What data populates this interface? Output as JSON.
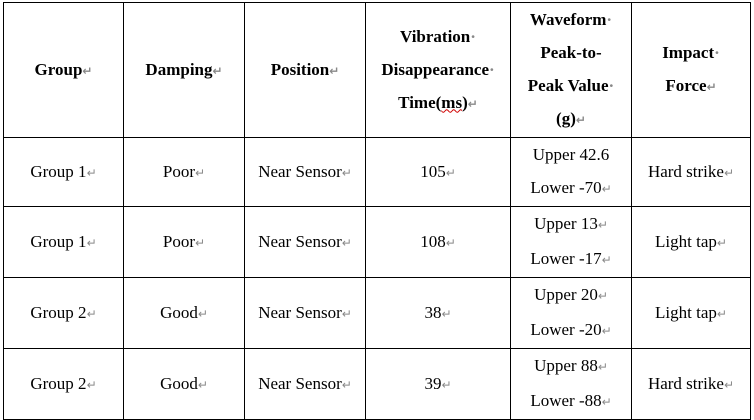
{
  "table": {
    "headers": {
      "group": "Group",
      "damping": "Damping",
      "position": "Position",
      "vibration_line1": "Vibration",
      "vibration_line2": "Disappearance",
      "vibration_line3_pre": "Time(",
      "vibration_line3_ms": "ms",
      "vibration_line3_post": ")",
      "waveform_line1": "Waveform",
      "waveform_line2": "Peak-to-",
      "waveform_line3": "Peak Value",
      "waveform_line4": "(g)",
      "impact_line1": "Impact",
      "impact_line2": "Force"
    },
    "rows": [
      {
        "group": "Group 1",
        "damping": "Poor",
        "position": "Near Sensor",
        "time": "105",
        "upper": "Upper 42.6",
        "lower": "Lower -70",
        "force": "Hard strike"
      },
      {
        "group": "Group 1",
        "damping": "Poor",
        "position": "Near Sensor",
        "time": "108",
        "upper": "Upper 13",
        "lower": "Lower -17",
        "force": "Light tap"
      },
      {
        "group": "Group 2",
        "damping": "Good",
        "position": "Near Sensor",
        "time": "38",
        "upper": "Upper 20",
        "lower": "Lower -20",
        "force": "Light tap"
      },
      {
        "group": "Group 2",
        "damping": "Good",
        "position": "Near Sensor",
        "time": "39",
        "upper": "Upper 88",
        "lower": "Lower -88",
        "force": "Hard strike"
      }
    ]
  },
  "marks": {
    "paragraph_mark": "↵",
    "space_dot": "·"
  }
}
